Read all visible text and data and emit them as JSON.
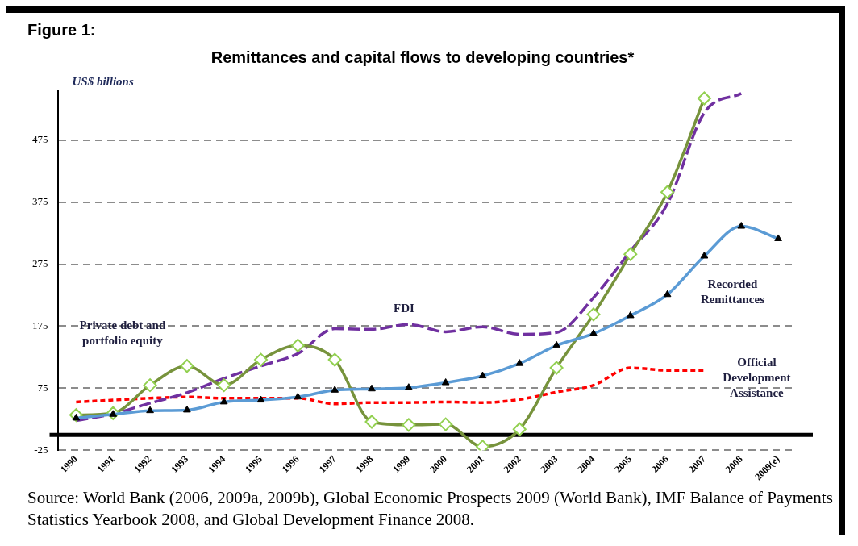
{
  "chart_data": {
    "type": "line",
    "subtitle": "Figure 1:",
    "title": "Remittances and capital flows to developing countries*",
    "ylabel": "US$ billions",
    "categories": [
      "1990",
      "1991",
      "1992",
      "1993",
      "1994",
      "1995",
      "1996",
      "1997",
      "1998",
      "1999",
      "2000",
      "2001",
      "2002",
      "2003",
      "2004",
      "2005",
      "2006",
      "2007",
      "2008",
      "2009(e)"
    ],
    "series": [
      {
        "name": "Private debt and portfolio equity",
        "color": "#77933c",
        "marker": "diamond",
        "line_style": "solid",
        "values": [
          32,
          35,
          80,
          111,
          80,
          121,
          144,
          121,
          21,
          16,
          17,
          -19,
          9,
          108,
          194,
          291,
          391,
          542,
          null,
          null
        ]
      },
      {
        "name": "FDI",
        "color": "#7030a0",
        "marker": "none",
        "line_style": "dashed",
        "values": [
          23,
          34,
          51,
          68,
          91,
          111,
          131,
          171,
          170,
          178,
          166,
          174,
          162,
          165,
          221,
          296,
          372,
          519,
          550,
          null
        ]
      },
      {
        "name": "Recorded Remittances",
        "color": "#5b9bd5",
        "marker": "triangle",
        "line_style": "solid",
        "values": [
          27,
          33,
          39,
          40,
          53,
          56,
          61,
          72,
          74,
          76,
          84,
          95,
          115,
          144,
          163,
          192,
          226,
          288,
          336,
          316
        ]
      },
      {
        "name": "Official Development Assistance",
        "color": "#ff0000",
        "marker": "none",
        "line_style": "dotted",
        "values": [
          53,
          56,
          59,
          61,
          59,
          59,
          59,
          50,
          52,
          52,
          53,
          52,
          57,
          69,
          80,
          108,
          104,
          104,
          null,
          null
        ]
      }
    ],
    "ylim": [
      -25,
      555
    ],
    "yticks": [
      -25,
      75,
      175,
      275,
      375,
      475
    ],
    "grid": "y",
    "legend": false,
    "ref_lines": [
      {
        "axis": "y",
        "value": 0,
        "color": "#000000"
      }
    ],
    "annotations": [
      "Source: World Bank (2006, 2009a, 2009b), Global Economic Prospects 2009 (World Bank), IMF Balance of Payments Statistics Yearbook 2008, and Global Development Finance 2008."
    ]
  }
}
